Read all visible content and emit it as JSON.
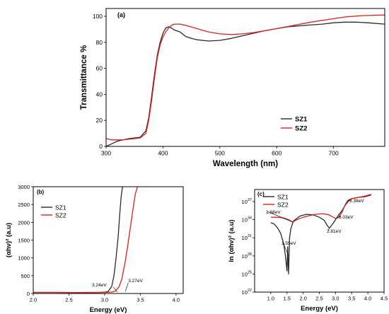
{
  "chart_data": [
    {
      "panel_label": "(a)",
      "type": "line",
      "xlabel": "Wavelength (nm)",
      "ylabel": "Transmittance %",
      "xlim": [
        300,
        790
      ],
      "ylim": [
        0,
        106
      ],
      "xticks": [
        300,
        400,
        500,
        600,
        700
      ],
      "yticks": [
        0,
        20,
        40,
        60,
        80,
        100
      ],
      "legend_position": "bottom-right",
      "grid": false,
      "series": [
        {
          "name": "SZ1",
          "color": "#2b2b2b",
          "x": [
            300,
            310,
            320,
            330,
            340,
            350,
            360,
            370,
            375,
            380,
            385,
            390,
            395,
            400,
            405,
            410,
            415,
            420,
            430,
            440,
            450,
            460,
            470,
            480,
            500,
            520,
            550,
            580,
            600,
            620,
            650,
            680,
            700,
            720,
            740,
            760,
            790
          ],
          "y": [
            0,
            2,
            4,
            5,
            6,
            6.5,
            7,
            12,
            22,
            38,
            55,
            70,
            80,
            87,
            91,
            92,
            91,
            89.5,
            88,
            84.5,
            83,
            82,
            81.5,
            81,
            81.5,
            83,
            86,
            89,
            90.5,
            92,
            93,
            94,
            95,
            95.5,
            95.5,
            95,
            94
          ]
        },
        {
          "name": "SZ2",
          "color": "#e0201b",
          "x": [
            300,
            310,
            320,
            330,
            340,
            350,
            360,
            370,
            375,
            380,
            385,
            390,
            395,
            400,
            405,
            410,
            415,
            420,
            430,
            440,
            460,
            480,
            500,
            520,
            540,
            560,
            580,
            600,
            630,
            660,
            690,
            720,
            750,
            790
          ],
          "y": [
            6,
            5,
            5,
            5,
            5.5,
            6,
            6.5,
            10,
            20,
            35,
            52,
            68,
            78,
            84,
            88,
            91,
            93,
            94,
            94,
            93,
            90.5,
            88,
            86.5,
            86,
            86.5,
            87.5,
            89,
            90.5,
            93,
            95.5,
            97.5,
            99.5,
            100.5,
            101
          ]
        }
      ]
    },
    {
      "panel_label": "(b)",
      "type": "line",
      "xlabel": "Energy (eV)",
      "ylabel": "(αhν)² (a.u)",
      "xlim": [
        2.0,
        4.1
      ],
      "ylim": [
        0,
        3000
      ],
      "xticks": [
        2.0,
        2.5,
        3.0,
        3.5,
        4.0
      ],
      "yticks": [
        0,
        500,
        1000,
        1500,
        2000,
        2500,
        3000
      ],
      "legend_position": "top-left",
      "grid": false,
      "annotations": [
        {
          "text": "3.24eV",
          "x": 3.24,
          "y": 0
        },
        {
          "text": "3.27eV",
          "x": 3.27,
          "y": 0
        }
      ],
      "series": [
        {
          "name": "SZ1",
          "color": "#2b2b2b",
          "x": [
            2.0,
            2.3,
            2.6,
            2.9,
            3.0,
            3.05,
            3.1,
            3.13,
            3.16,
            3.19,
            3.21,
            3.23,
            3.25
          ],
          "y": [
            30,
            30,
            25,
            30,
            35,
            60,
            200,
            500,
            1000,
            1600,
            2200,
            2700,
            3000
          ]
        },
        {
          "name": "SZ2",
          "color": "#e0201b",
          "x": [
            2.0,
            2.3,
            2.6,
            2.9,
            3.0,
            3.1,
            3.15,
            3.2,
            3.24,
            3.28,
            3.32,
            3.36,
            3.4,
            3.43,
            3.46
          ],
          "y": [
            30,
            30,
            25,
            25,
            30,
            40,
            70,
            180,
            400,
            800,
            1300,
            1850,
            2400,
            2800,
            3000
          ]
        }
      ]
    },
    {
      "panel_label": "(c)",
      "type": "line",
      "xlabel": "Energy (eV)",
      "ylabel": "ln (αhν)² (a.u)",
      "xlim": [
        0.5,
        4.5
      ],
      "log_scale_y": true,
      "ylim_exponent": [
        22,
        39
      ],
      "xticks": [
        1.0,
        1.5,
        2.0,
        2.5,
        3.0,
        3.5,
        4.0,
        4.5
      ],
      "ytick_base": "10",
      "ytick_exponents": [
        "22",
        "25",
        "28",
        "31",
        "34",
        "37"
      ],
      "legend_position": "top-left",
      "grid": false,
      "annotations": [
        {
          "text": "1.68eV",
          "x": 1.68
        },
        {
          "text": "1.55eV",
          "x": 1.55
        },
        {
          "text": "2.81eV",
          "x": 2.81
        },
        {
          "text": "3.03eV",
          "x": 3.03
        },
        {
          "text": "3.38eV",
          "x": 3.38
        }
      ],
      "series": [
        {
          "name": "SZ1",
          "color": "#2b2b2b",
          "x": [
            1.0,
            1.1,
            1.2,
            1.3,
            1.4,
            1.45,
            1.5,
            1.52,
            1.55,
            1.58,
            1.62,
            1.7,
            1.9,
            2.1,
            2.3,
            2.5,
            2.65,
            2.75,
            2.81,
            2.9,
            3.0,
            3.1,
            3.2,
            3.3,
            3.4,
            3.5,
            3.7,
            3.9,
            4.1
          ],
          "y": [
            33.5,
            33.3,
            32.7,
            31.8,
            30,
            28,
            25.5,
            29.5,
            25,
            31,
            32.5,
            33.8,
            34.6,
            34.9,
            34.8,
            34.4,
            33.9,
            33,
            32.6,
            33.2,
            34,
            34.8,
            35.5,
            36.4,
            37.1,
            37.5,
            37.7,
            37.8,
            38.1
          ]
        },
        {
          "name": "SZ2",
          "color": "#e0201b",
          "x": [
            1.0,
            1.2,
            1.4,
            1.55,
            1.68,
            1.8,
            2.0,
            2.2,
            2.4,
            2.6,
            2.8,
            3.0,
            3.1,
            3.2,
            3.3,
            3.38,
            3.5,
            3.7,
            3.9,
            4.1
          ],
          "y": [
            34.4,
            34.4,
            34.3,
            34,
            33.6,
            34,
            34.4,
            34.7,
            34.9,
            35,
            34.8,
            34.2,
            34.4,
            35.2,
            36.5,
            37.2,
            37.5,
            37.7,
            37.9,
            38.2
          ]
        }
      ]
    }
  ]
}
